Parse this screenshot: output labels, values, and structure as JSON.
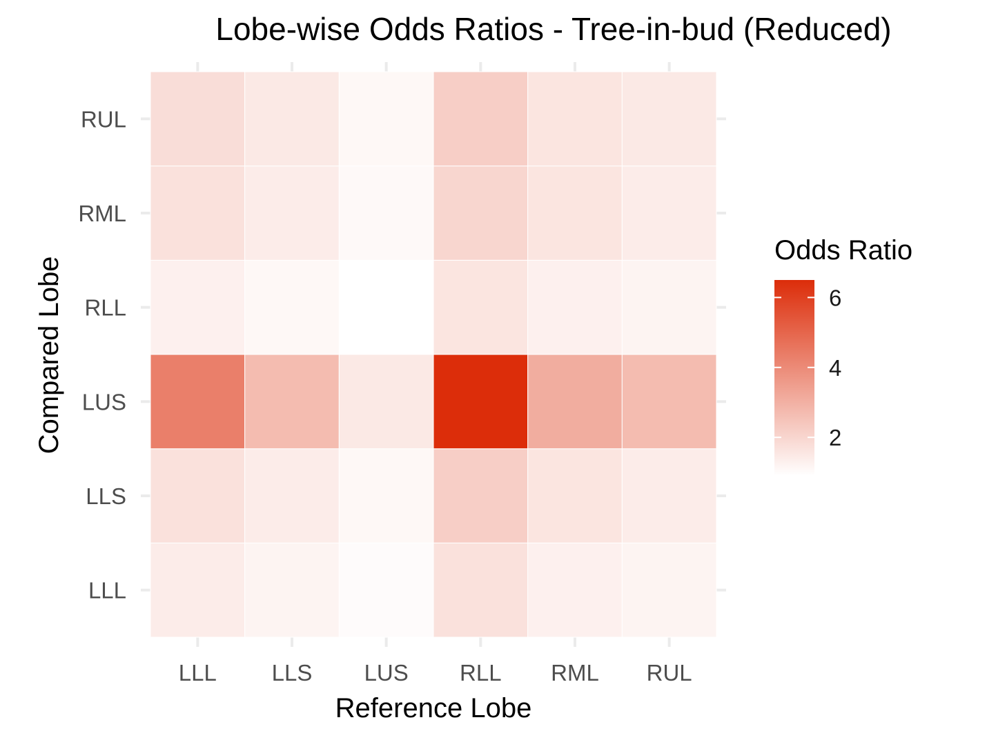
{
  "chart_data": {
    "type": "heatmap",
    "title": "Lobe-wise Odds Ratios - Tree-in-bud (Reduced)",
    "xlabel": "Reference Lobe",
    "ylabel": "Compared Lobe",
    "x_categories": [
      "LLL",
      "LLS",
      "LUS",
      "RLL",
      "RML",
      "RUL"
    ],
    "y_categories": [
      "LLL",
      "LLS",
      "LUS",
      "RLL",
      "RML",
      "RUL"
    ],
    "values": [
      [
        1.4,
        1.2,
        1.0,
        1.7,
        1.3,
        1.2
      ],
      [
        1.7,
        1.4,
        1.1,
        2.2,
        1.6,
        1.4
      ],
      [
        4.3,
        2.7,
        1.5,
        6.5,
        3.1,
        2.7
      ],
      [
        1.3,
        1.1,
        0.9,
        1.6,
        1.3,
        1.2
      ],
      [
        1.7,
        1.4,
        1.05,
        2.0,
        1.6,
        1.4
      ],
      [
        1.8,
        1.5,
        1.1,
        2.2,
        1.6,
        1.5
      ]
    ],
    "value_range": [
      0.9,
      6.5
    ],
    "grid": true,
    "legend": {
      "title": "Odds Ratio",
      "position": "right",
      "ticks": [
        2,
        4,
        6
      ],
      "ticks_label": [
        "2",
        "4",
        "6"
      ],
      "low_color": "#ffffff",
      "high_color": "#dc2d0a"
    }
  }
}
